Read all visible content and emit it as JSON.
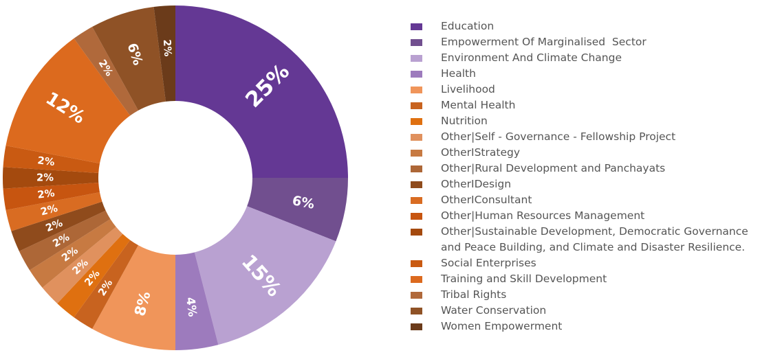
{
  "chart_data": {
    "type": "pie",
    "variant": "donut",
    "legend_position": "right",
    "slices": [
      {
        "label": "Education",
        "value": 25,
        "display": "25%",
        "color": "#643894"
      },
      {
        "label": "Empowerment Of Marginalised  Sector",
        "value": 6,
        "display": "6%",
        "color": "#714f8f"
      },
      {
        "label": "Environment And Climate Change",
        "value": 15,
        "display": "15%",
        "color": "#b9a1d1"
      },
      {
        "label": "Health",
        "value": 4,
        "display": "4%",
        "color": "#9d7bbd"
      },
      {
        "label": "Livelihood",
        "value": 8,
        "display": "8%",
        "color": "#f0955a"
      },
      {
        "label": "Mental Health",
        "value": 2,
        "display": "2%",
        "color": "#c8631f"
      },
      {
        "label": "Nutrition",
        "value": 2,
        "display": "2%",
        "color": "#df7010"
      },
      {
        "label": "Other|Self - Governance - Fellowship Project",
        "value": 2,
        "display": "2%",
        "color": "#e0915e"
      },
      {
        "label": "OtherIStrategy",
        "value": 2,
        "display": "2%",
        "color": "#c77a42"
      },
      {
        "label": "Other|Rural Development and Panchayats",
        "value": 2,
        "display": "2%",
        "color": "#ad6737"
      },
      {
        "label": "OtherIDesign",
        "value": 2,
        "display": "2%",
        "color": "#8f4b1c"
      },
      {
        "label": "OtherIConsultant",
        "value": 2,
        "display": "2%",
        "color": "#d96c22"
      },
      {
        "label": "Other|Human Resources Management",
        "value": 2,
        "display": "2%",
        "color": "#c75510"
      },
      {
        "label": "Other|Sustainable Development, Democratic Governance\nand Peace Building, and Climate and Disaster Resilience.",
        "value": 2,
        "display": "2%",
        "color": "#a44a0e"
      },
      {
        "label": "Social Enterprises",
        "value": 2,
        "display": "2%",
        "color": "#c95a12"
      },
      {
        "label": "Training and Skill Development",
        "value": 12,
        "display": "12%",
        "color": "#dc6a1e"
      },
      {
        "label": "Tribal Rights",
        "value": 2,
        "display": "2%",
        "color": "#b0693b"
      },
      {
        "label": "Water Conservation",
        "value": 6,
        "display": "6%",
        "color": "#8f5226"
      },
      {
        "label": "Women Empowerment",
        "value": 2,
        "display": "2%",
        "color": "#6b3b1a"
      }
    ]
  }
}
